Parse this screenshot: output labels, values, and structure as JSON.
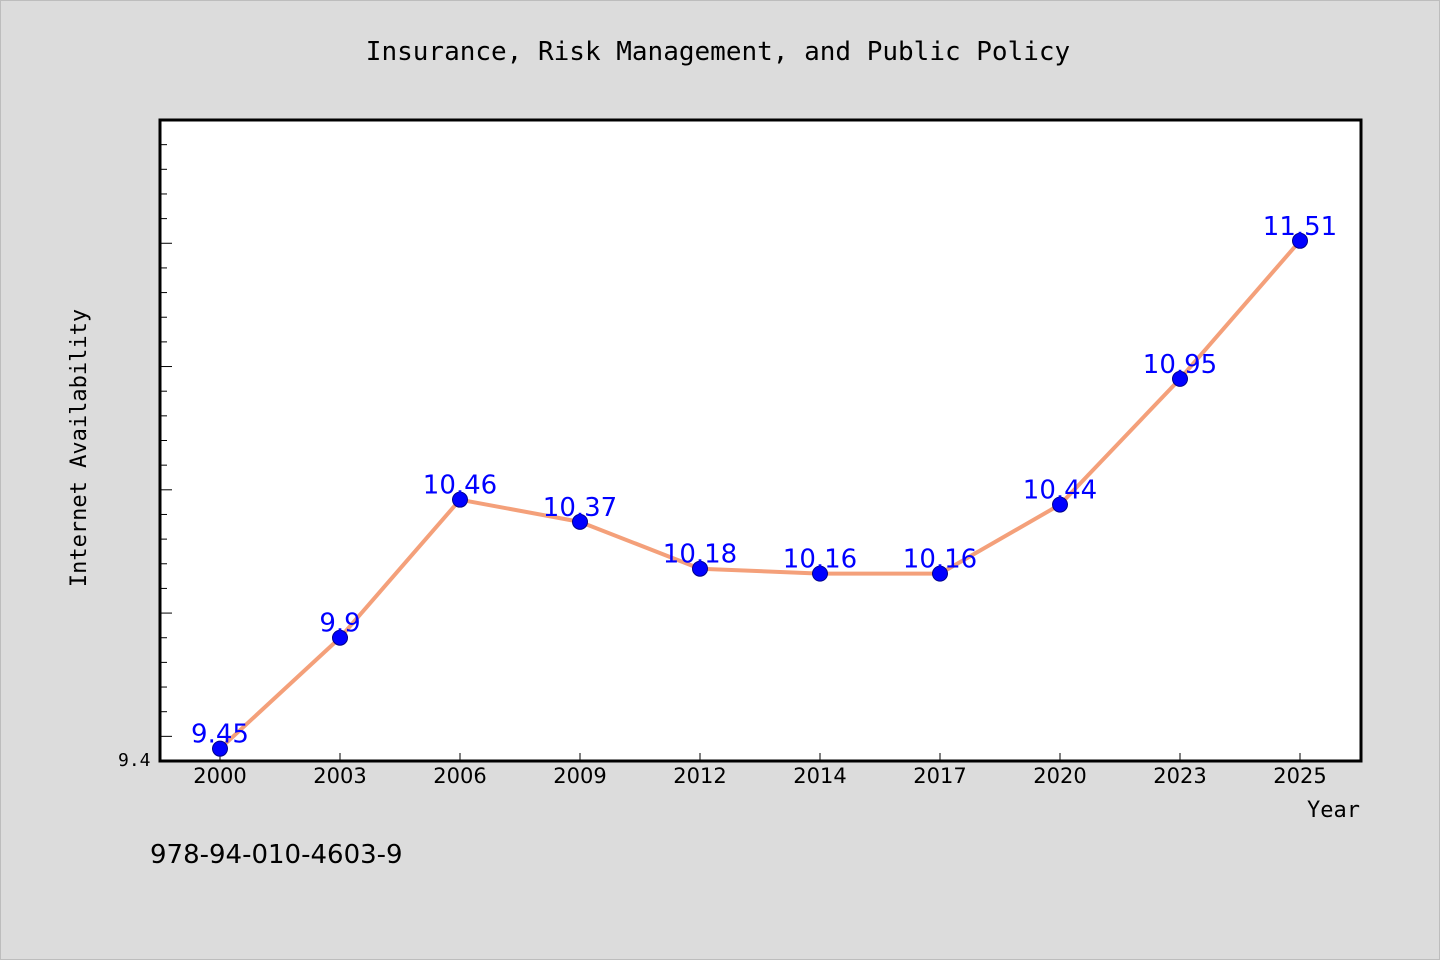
{
  "chart_data": {
    "type": "line",
    "title": "Insurance, Risk Management, and Public Policy",
    "xlabel": "Year",
    "ylabel": "Internet Availability",
    "categories": [
      "2000",
      "2003",
      "2006",
      "2009",
      "2012",
      "2014",
      "2017",
      "2020",
      "2023",
      "2025"
    ],
    "series": [
      {
        "values": [
          9.45,
          9.9,
          10.46,
          10.37,
          10.18,
          10.16,
          10.16,
          10.44,
          10.95,
          11.51
        ]
      }
    ],
    "data_labels": [
      "9.45",
      "9.9",
      "10.46",
      "10.37",
      "10.18",
      "10.16",
      "10.16",
      "10.44",
      "10.95",
      "11.51"
    ],
    "y_tick_labels": [
      "9.4"
    ],
    "ylim": [
      9.4,
      12.0
    ],
    "grid": false,
    "legend": "none",
    "colors": {
      "line": "#f4a07a",
      "marker": "#0000ff",
      "label": "#0000ff",
      "background": "#dcdcdc",
      "plot": "#ffffff"
    }
  },
  "footer": {
    "isbn": "978-94-010-4603-9"
  }
}
